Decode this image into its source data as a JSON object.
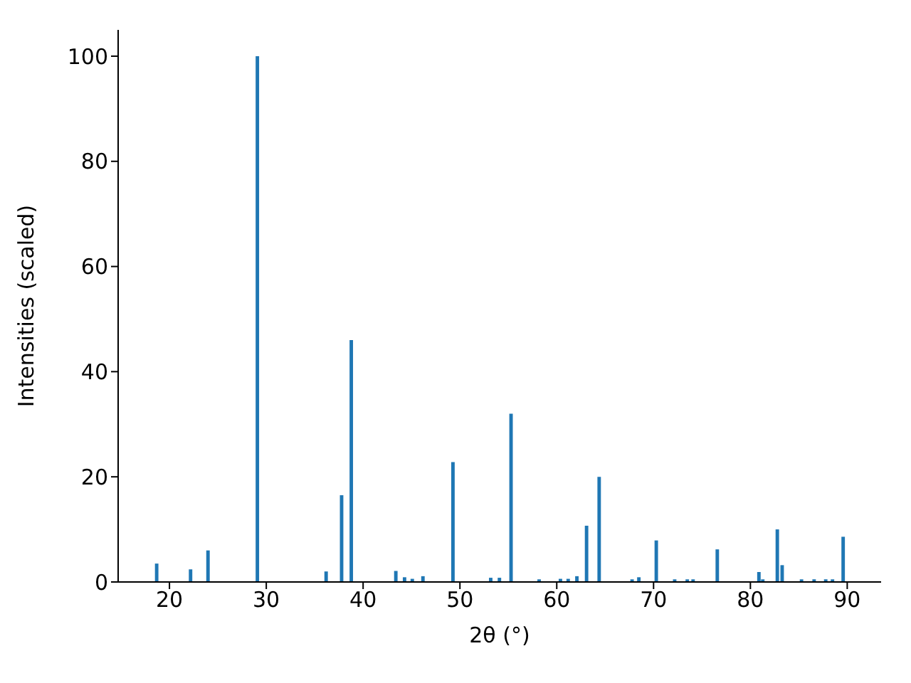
{
  "chart_data": {
    "type": "bar",
    "xlabel": "2θ (°)",
    "ylabel": "Intensities (scaled)",
    "color": "#1f77b4",
    "x": [
      18.7,
      22.2,
      24.0,
      29.1,
      36.2,
      37.8,
      38.8,
      43.4,
      44.3,
      45.1,
      46.2,
      49.3,
      53.2,
      54.1,
      55.3,
      58.2,
      60.4,
      61.2,
      62.1,
      63.1,
      64.4,
      67.8,
      68.5,
      70.3,
      72.2,
      73.5,
      74.1,
      76.6,
      80.9,
      81.3,
      82.8,
      83.3,
      85.3,
      86.6,
      87.8,
      88.5,
      89.6
    ],
    "values": [
      3.5,
      2.4,
      6.0,
      100,
      2.0,
      16.5,
      46,
      2.1,
      0.9,
      0.6,
      1.1,
      22.8,
      0.8,
      0.8,
      32,
      0.5,
      0.6,
      0.6,
      1.1,
      10.7,
      20,
      0.5,
      0.9,
      7.9,
      0.5,
      0.5,
      0.5,
      6.2,
      1.9,
      0.5,
      10,
      3.2,
      0.5,
      0.5,
      0.5,
      0.5,
      8.6
    ],
    "xlim": [
      14.7,
      93.5
    ],
    "ylim": [
      0,
      105
    ],
    "xticks": [
      20,
      30,
      40,
      50,
      60,
      70,
      80,
      90
    ],
    "yticks": [
      0,
      20,
      40,
      60,
      80,
      100
    ]
  }
}
